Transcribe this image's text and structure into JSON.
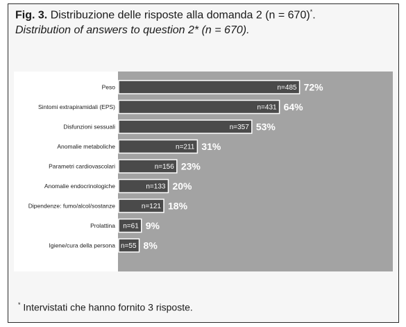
{
  "caption": {
    "fig_label": "Fig. 3.",
    "title_it": "Distribuzione delle risposte alla domanda 2 (n = 670)",
    "title_it_mark": "*",
    "title_it_end": ".",
    "title_en": "Distribution of answers to question 2* (n = 670).",
    "title_en_note": ""
  },
  "chart_data": {
    "type": "bar",
    "orientation": "horizontal",
    "categories": [
      "Peso",
      "Sintomi extrapiramidali (EPS)",
      "Disfunzioni sessuali",
      "Anomalie metaboliche",
      "Parametri cardiovascolari",
      "Anomalie endocrinologiche",
      "Dipendenze: fumo/alcol/sostanze",
      "Prolattina",
      "Igiene/cura della persona"
    ],
    "series": [
      {
        "values": [
          485,
          431,
          357,
          211,
          156,
          133,
          121,
          61,
          55
        ]
      }
    ],
    "percent_labels": [
      "72%",
      "64%",
      "53%",
      "31%",
      "23%",
      "20%",
      "18%",
      "9%",
      "8%"
    ],
    "count_labels": [
      "n=485",
      "n=431",
      "n=357",
      "n=211",
      "n=156",
      "n=133",
      "n=121",
      "n=61",
      "n=55"
    ],
    "title": "",
    "xlabel": "",
    "ylabel": "",
    "xlim": [
      0,
      670
    ],
    "grid": false,
    "legend": "none",
    "colors": {
      "bar": "#4a4a4a",
      "bar_border": "#ffffff",
      "background": "#a3a3a3",
      "percent_text": "#ffffff",
      "count_text": "#ffffff",
      "category_text": "#1a1a1a"
    }
  },
  "footnote": {
    "mark": "*",
    "text": " Intervistati che hanno fornito 3 risposte."
  }
}
